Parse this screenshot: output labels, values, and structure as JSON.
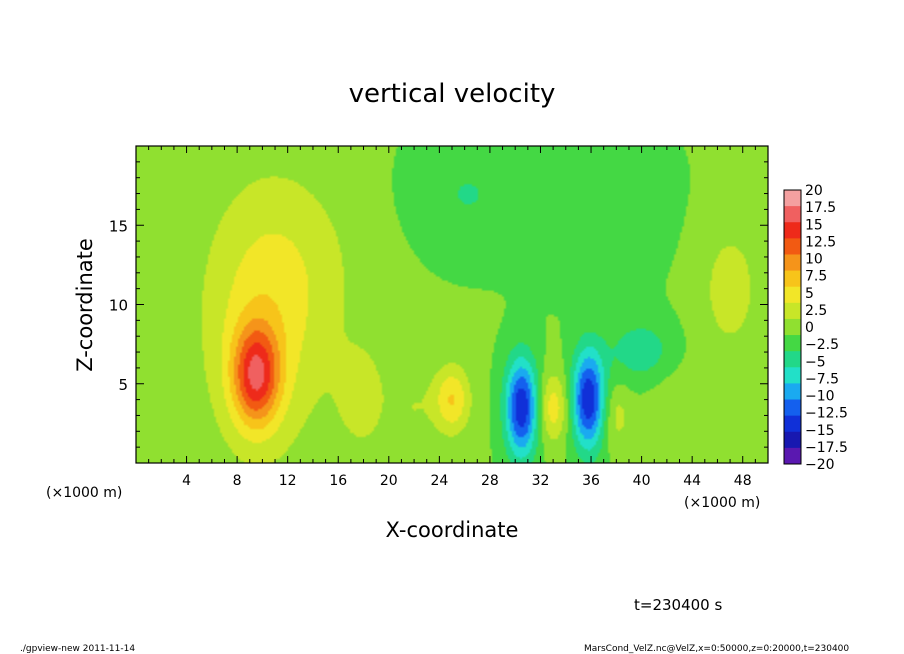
{
  "chart_data": {
    "type": "heatmap",
    "title": "vertical velocity",
    "xlabel": "X-coordinate",
    "ylabel": "Z-coordinate",
    "x_unit_label_left": "(×1000 m)",
    "x_unit_label_right": "(×1000 m)",
    "xlim": [
      0,
      50
    ],
    "ylim": [
      0,
      20
    ],
    "x_ticks": [
      4,
      8,
      12,
      16,
      20,
      24,
      28,
      32,
      36,
      40,
      44,
      48
    ],
    "y_ticks": [
      5,
      10,
      15
    ],
    "colorbar": {
      "levels": [
        "20",
        "17.5",
        "15",
        "12.5",
        "10",
        "7.5",
        "5",
        "2.5",
        "0",
        "−2.5",
        "−5",
        "−7.5",
        "−10",
        "−12.5",
        "−15",
        "−17.5",
        "−20"
      ],
      "colors": [
        "#f4a0a0",
        "#f06060",
        "#ee2a1a",
        "#f25a12",
        "#f5941a",
        "#f7c41a",
        "#f2e628",
        "#c8e628",
        "#90e030",
        "#44d844",
        "#22d888",
        "#22e0c8",
        "#1aaaf0",
        "#1460ee",
        "#1030d8",
        "#1818b0",
        "#5a18b0"
      ]
    },
    "background_value": -1,
    "features": [
      {
        "x": 9.5,
        "z": 5.5,
        "sx": 1.3,
        "sz": 2.2,
        "value": 13
      },
      {
        "x": 10.0,
        "z": 8.5,
        "sx": 3.5,
        "sz": 6.0,
        "value": 5
      },
      {
        "x": 13.0,
        "z": 12.5,
        "sx": 4.0,
        "sz": 4.5,
        "value": 2
      },
      {
        "x": 25.0,
        "z": 4.0,
        "sx": 1.0,
        "sz": 1.5,
        "value": 7
      },
      {
        "x": 30.5,
        "z": 3.5,
        "sx": 0.9,
        "sz": 2.2,
        "value": -14
      },
      {
        "x": 35.8,
        "z": 4.0,
        "sx": 0.9,
        "sz": 2.2,
        "value": -14
      },
      {
        "x": 33.0,
        "z": 3.5,
        "sx": 0.8,
        "sz": 1.5,
        "value": 6
      },
      {
        "x": 38.0,
        "z": 3.0,
        "sx": 0.8,
        "sz": 1.5,
        "value": 3
      },
      {
        "x": 18.0,
        "z": 4.0,
        "sx": 1.5,
        "sz": 2.5,
        "value": 3
      },
      {
        "x": 22.0,
        "z": 3.5,
        "sx": 1.2,
        "sz": 2.0,
        "value": 2
      },
      {
        "x": 47.0,
        "z": 11.0,
        "sx": 2.0,
        "sz": 3.5,
        "value": 3
      },
      {
        "x": 43.0,
        "z": 3.5,
        "sx": 2.0,
        "sz": 2.0,
        "value": 2
      },
      {
        "x": 36.0,
        "z": 16.0,
        "sx": 4.0,
        "sz": 3.0,
        "value": -2.5
      },
      {
        "x": 26.0,
        "z": 17.0,
        "sx": 3.0,
        "sz": 2.5,
        "value": -2.5
      },
      {
        "x": 40.0,
        "z": 7.0,
        "sx": 2.0,
        "sz": 1.5,
        "value": -4
      }
    ]
  },
  "time_label": "t=230400 s",
  "footer": {
    "left": "./gpview-new  2011-11-14",
    "right": "MarsCond_VelZ.nc@VelZ,x=0:50000,z=0:20000,t=230400"
  }
}
